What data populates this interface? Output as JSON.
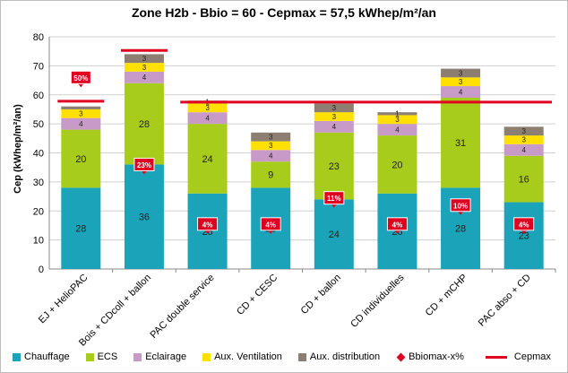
{
  "chart_data": {
    "type": "bar",
    "stacked": true,
    "title": "Zone H2b - Bbio = 60 - Cepmax = 57,5 kWhep/m²/an",
    "ylabel": "Cep (kWhep/m²/an)",
    "xlabel": "",
    "ylim": [
      0,
      80
    ],
    "yticks": [
      0,
      10,
      20,
      30,
      40,
      50,
      60,
      70,
      80
    ],
    "grid": true,
    "legend_position": "bottom",
    "categories": [
      "EJ + HelioPAC",
      "Bois + CDcoll + ballon",
      "PAC double service",
      "CD + CESC",
      "CD + ballon",
      "CD individuelles",
      "CD + mCHP",
      "PAC abso + CD"
    ],
    "series": [
      {
        "name": "Chauffage",
        "color": "#1aa3b9",
        "values": [
          28,
          36,
          26,
          28,
          24,
          26,
          28,
          23
        ],
        "labels": [
          "28",
          "36",
          "26",
          "28",
          "24",
          "26",
          "28",
          "23"
        ]
      },
      {
        "name": "ECS",
        "color": "#a8cc1c",
        "values": [
          20,
          28,
          24,
          9,
          23,
          20,
          31,
          16
        ],
        "labels": [
          "20",
          "28",
          "24",
          "9",
          "23",
          "20",
          "31",
          "16"
        ]
      },
      {
        "name": "Eclairage",
        "color": "#c89ac8",
        "values": [
          4,
          4,
          4,
          4,
          4,
          4,
          4,
          4
        ],
        "labels": [
          "4",
          "4",
          "4",
          "4",
          "4",
          "4",
          "4",
          "4"
        ]
      },
      {
        "name": "Aux. Ventilation",
        "color": "#ffe000",
        "values": [
          3,
          3,
          3,
          3,
          3,
          3,
          3,
          3
        ],
        "labels": [
          "3",
          "3",
          "3",
          "3",
          "3",
          "3",
          "3",
          "3"
        ]
      },
      {
        "name": "Aux. distribution",
        "color": "#8c7f72",
        "values": [
          1,
          3,
          1,
          3,
          3,
          1,
          3,
          3
        ],
        "labels": [
          "",
          "3",
          "1",
          "3",
          "3",
          "1",
          "3",
          "3"
        ]
      }
    ],
    "bbiomax": {
      "name": "Bbiomax-x%",
      "color": "#e00020",
      "values": [
        66,
        36,
        15.5,
        15.5,
        24.5,
        15.5,
        22,
        15.5
      ],
      "labels": [
        "50%",
        "23%",
        "4%",
        "4%",
        "11%",
        "4%",
        "10%",
        "4%"
      ]
    },
    "cepmax": {
      "name": "Cepmax",
      "color": "#e00020",
      "value": 57.5,
      "group_values": [
        57.8,
        75.3,
        null,
        null,
        null,
        null,
        null,
        null
      ]
    }
  }
}
